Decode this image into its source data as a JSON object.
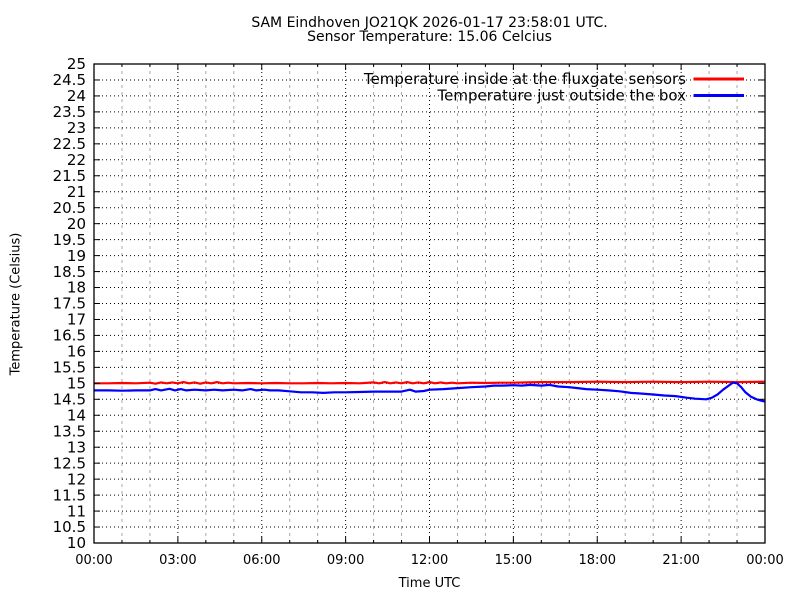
{
  "chart_data": {
    "type": "line",
    "title": "SAM Eindhoven JO21QK 2026-01-17 23:58:01 UTC.",
    "subtitle": "Sensor Temperature: 15.06 Celcius",
    "xlabel": "Time UTC",
    "ylabel": "Temperature (Celsius)",
    "x_unit": "hours_utc",
    "xlim": [
      0,
      24
    ],
    "ylim": [
      10,
      25
    ],
    "y_tick_step": 0.5,
    "x_ticks": [
      {
        "hour": 0,
        "label": "00:00"
      },
      {
        "hour": 3,
        "label": "03:00"
      },
      {
        "hour": 6,
        "label": "06:00"
      },
      {
        "hour": 9,
        "label": "09:00"
      },
      {
        "hour": 12,
        "label": "12:00"
      },
      {
        "hour": 15,
        "label": "15:00"
      },
      {
        "hour": 18,
        "label": "18:00"
      },
      {
        "hour": 21,
        "label": "21:00"
      },
      {
        "hour": 24,
        "label": "00:00"
      }
    ],
    "x_minor_tick_every_hours": 1,
    "grid": {
      "major": "black dotted at every labeled tick",
      "minor_vertical": "light gray dashed at every hour",
      "mirrored_ticks": true
    },
    "legend": {
      "position": "top-right-inside"
    },
    "series": [
      {
        "name": "Temperature inside at the fluxgate sensors",
        "color": "#ff0000",
        "points": [
          [
            0,
            15.0
          ],
          [
            0.5,
            15.0
          ],
          [
            1,
            15.01
          ],
          [
            1.5,
            15.0
          ],
          [
            2,
            15.02
          ],
          [
            2.2,
            14.99
          ],
          [
            2.4,
            15.03
          ],
          [
            2.6,
            15.0
          ],
          [
            2.8,
            15.03
          ],
          [
            3,
            15.0
          ],
          [
            3.2,
            15.04
          ],
          [
            3.4,
            15.0
          ],
          [
            3.6,
            15.03
          ],
          [
            3.8,
            14.99
          ],
          [
            4,
            15.03
          ],
          [
            4.2,
            15.0
          ],
          [
            4.4,
            15.04
          ],
          [
            4.6,
            15.0
          ],
          [
            4.8,
            15.02
          ],
          [
            5,
            15.0
          ],
          [
            5.5,
            15.01
          ],
          [
            6,
            15.0
          ],
          [
            6.5,
            15.01
          ],
          [
            7,
            15.0
          ],
          [
            7.5,
            15.0
          ],
          [
            8,
            15.01
          ],
          [
            8.5,
            15.0
          ],
          [
            9,
            15.01
          ],
          [
            9.5,
            15.0
          ],
          [
            10,
            15.03
          ],
          [
            10.2,
            15.0
          ],
          [
            10.4,
            15.04
          ],
          [
            10.6,
            15.0
          ],
          [
            10.8,
            15.03
          ],
          [
            11,
            15.0
          ],
          [
            11.2,
            15.04
          ],
          [
            11.4,
            15.0
          ],
          [
            11.6,
            15.03
          ],
          [
            11.8,
            15.0
          ],
          [
            12,
            15.04
          ],
          [
            12.2,
            15.0
          ],
          [
            12.4,
            15.03
          ],
          [
            12.6,
            15.0
          ],
          [
            12.8,
            15.02
          ],
          [
            13,
            15.0
          ],
          [
            13.5,
            15.02
          ],
          [
            14,
            15.01
          ],
          [
            14.5,
            15.02
          ],
          [
            15,
            15.02
          ],
          [
            15.5,
            15.03
          ],
          [
            16,
            15.04
          ],
          [
            17,
            15.04
          ],
          [
            18,
            15.05
          ],
          [
            19,
            15.04
          ],
          [
            20,
            15.05
          ],
          [
            21,
            15.04
          ],
          [
            22,
            15.05
          ],
          [
            23,
            15.04
          ],
          [
            24,
            15.05
          ]
        ]
      },
      {
        "name": "Temperature just outside the box",
        "color": "#0000ff",
        "points": [
          [
            0,
            14.78
          ],
          [
            0.5,
            14.78
          ],
          [
            1,
            14.77
          ],
          [
            1.5,
            14.78
          ],
          [
            2,
            14.78
          ],
          [
            2.2,
            14.82
          ],
          [
            2.4,
            14.78
          ],
          [
            2.7,
            14.83
          ],
          [
            2.9,
            14.78
          ],
          [
            3.1,
            14.82
          ],
          [
            3.3,
            14.78
          ],
          [
            3.6,
            14.8
          ],
          [
            4,
            14.78
          ],
          [
            4.3,
            14.8
          ],
          [
            4.6,
            14.78
          ],
          [
            5,
            14.8
          ],
          [
            5.3,
            14.78
          ],
          [
            5.6,
            14.82
          ],
          [
            5.8,
            14.78
          ],
          [
            6.1,
            14.8
          ],
          [
            6.3,
            14.78
          ],
          [
            6.6,
            14.78
          ],
          [
            7,
            14.75
          ],
          [
            7.4,
            14.72
          ],
          [
            7.8,
            14.72
          ],
          [
            8.2,
            14.7
          ],
          [
            8.6,
            14.72
          ],
          [
            9,
            14.72
          ],
          [
            9.5,
            14.73
          ],
          [
            10,
            14.74
          ],
          [
            10.5,
            14.74
          ],
          [
            11,
            14.74
          ],
          [
            11.3,
            14.8
          ],
          [
            11.5,
            14.74
          ],
          [
            11.8,
            14.76
          ],
          [
            12,
            14.8
          ],
          [
            12.5,
            14.82
          ],
          [
            13,
            14.85
          ],
          [
            13.5,
            14.88
          ],
          [
            14,
            14.9
          ],
          [
            14.3,
            14.93
          ],
          [
            14.6,
            14.93
          ],
          [
            15,
            14.94
          ],
          [
            15.3,
            14.93
          ],
          [
            15.6,
            14.95
          ],
          [
            16,
            14.93
          ],
          [
            16.3,
            14.95
          ],
          [
            16.6,
            14.9
          ],
          [
            17,
            14.88
          ],
          [
            17.3,
            14.85
          ],
          [
            17.6,
            14.82
          ],
          [
            18,
            14.8
          ],
          [
            18.4,
            14.78
          ],
          [
            18.8,
            14.75
          ],
          [
            19.2,
            14.7
          ],
          [
            19.6,
            14.68
          ],
          [
            20,
            14.65
          ],
          [
            20.4,
            14.62
          ],
          [
            20.8,
            14.6
          ],
          [
            21.2,
            14.55
          ],
          [
            21.5,
            14.52
          ],
          [
            21.9,
            14.5
          ],
          [
            22.1,
            14.55
          ],
          [
            22.3,
            14.65
          ],
          [
            22.5,
            14.8
          ],
          [
            22.7,
            14.93
          ],
          [
            22.85,
            15.02
          ],
          [
            23,
            15.0
          ],
          [
            23.15,
            14.88
          ],
          [
            23.3,
            14.72
          ],
          [
            23.5,
            14.58
          ],
          [
            23.7,
            14.5
          ],
          [
            23.85,
            14.46
          ],
          [
            24,
            14.43
          ]
        ]
      }
    ]
  },
  "colors": {
    "background": "#ffffff",
    "axis": "#000000",
    "grid_major": "#000000",
    "grid_minor": "#a8a8a8"
  }
}
